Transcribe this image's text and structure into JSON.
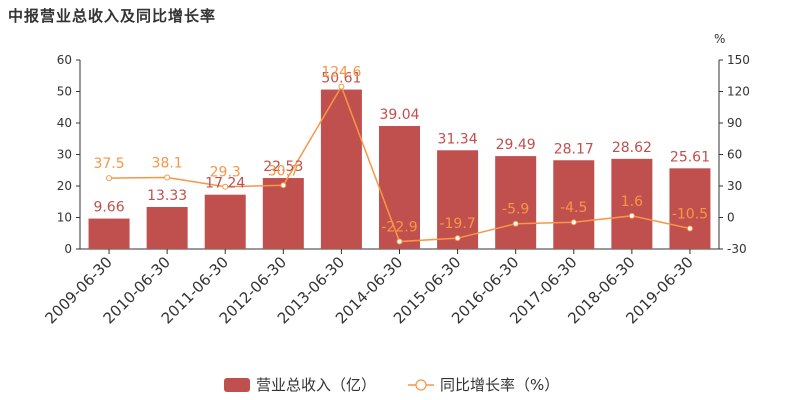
{
  "chart_data": {
    "type": "bar",
    "title": "中报营业总收入及同比增长率",
    "categories": [
      "2009-06-30",
      "2010-06-30",
      "2011-06-30",
      "2012-06-30",
      "2013-06-30",
      "2014-06-30",
      "2015-06-30",
      "2016-06-30",
      "2017-06-30",
      "2018-06-30",
      "2019-06-30"
    ],
    "series": [
      {
        "name": "营业总收入（亿）",
        "type": "bar",
        "axis": "left",
        "color": "#c0504d",
        "values": [
          9.66,
          13.33,
          17.24,
          22.53,
          50.61,
          39.04,
          31.34,
          29.49,
          28.17,
          28.62,
          25.61
        ],
        "labels": [
          "9.66",
          "13.33",
          "17.24",
          "22.53",
          "50.61",
          "39.04",
          "31.34",
          "29.49",
          "28.17",
          "28.62",
          "25.61"
        ]
      },
      {
        "name": "同比增长率（%）",
        "type": "line",
        "axis": "right",
        "color": "#f79646",
        "values": [
          37.5,
          38.1,
          29.3,
          30.7,
          124.6,
          -22.9,
          -19.7,
          -5.9,
          -4.5,
          1.6,
          -10.5
        ],
        "labels": [
          "37.5",
          "38.1",
          "29.3",
          "30.7",
          "124.6",
          "-22.9",
          "-19.7",
          "-5.9",
          "-4.5",
          "1.6",
          "-10.5"
        ]
      }
    ],
    "y_left": {
      "range": [
        0,
        60
      ],
      "ticks": [
        "0",
        "10",
        "20",
        "30",
        "40",
        "50",
        "60"
      ]
    },
    "y_right": {
      "range": [
        -30,
        150
      ],
      "ticks": [
        "-30",
        "0",
        "30",
        "60",
        "90",
        "120",
        "150"
      ],
      "unit": "%"
    },
    "grid": false,
    "legend_position": "bottom"
  }
}
